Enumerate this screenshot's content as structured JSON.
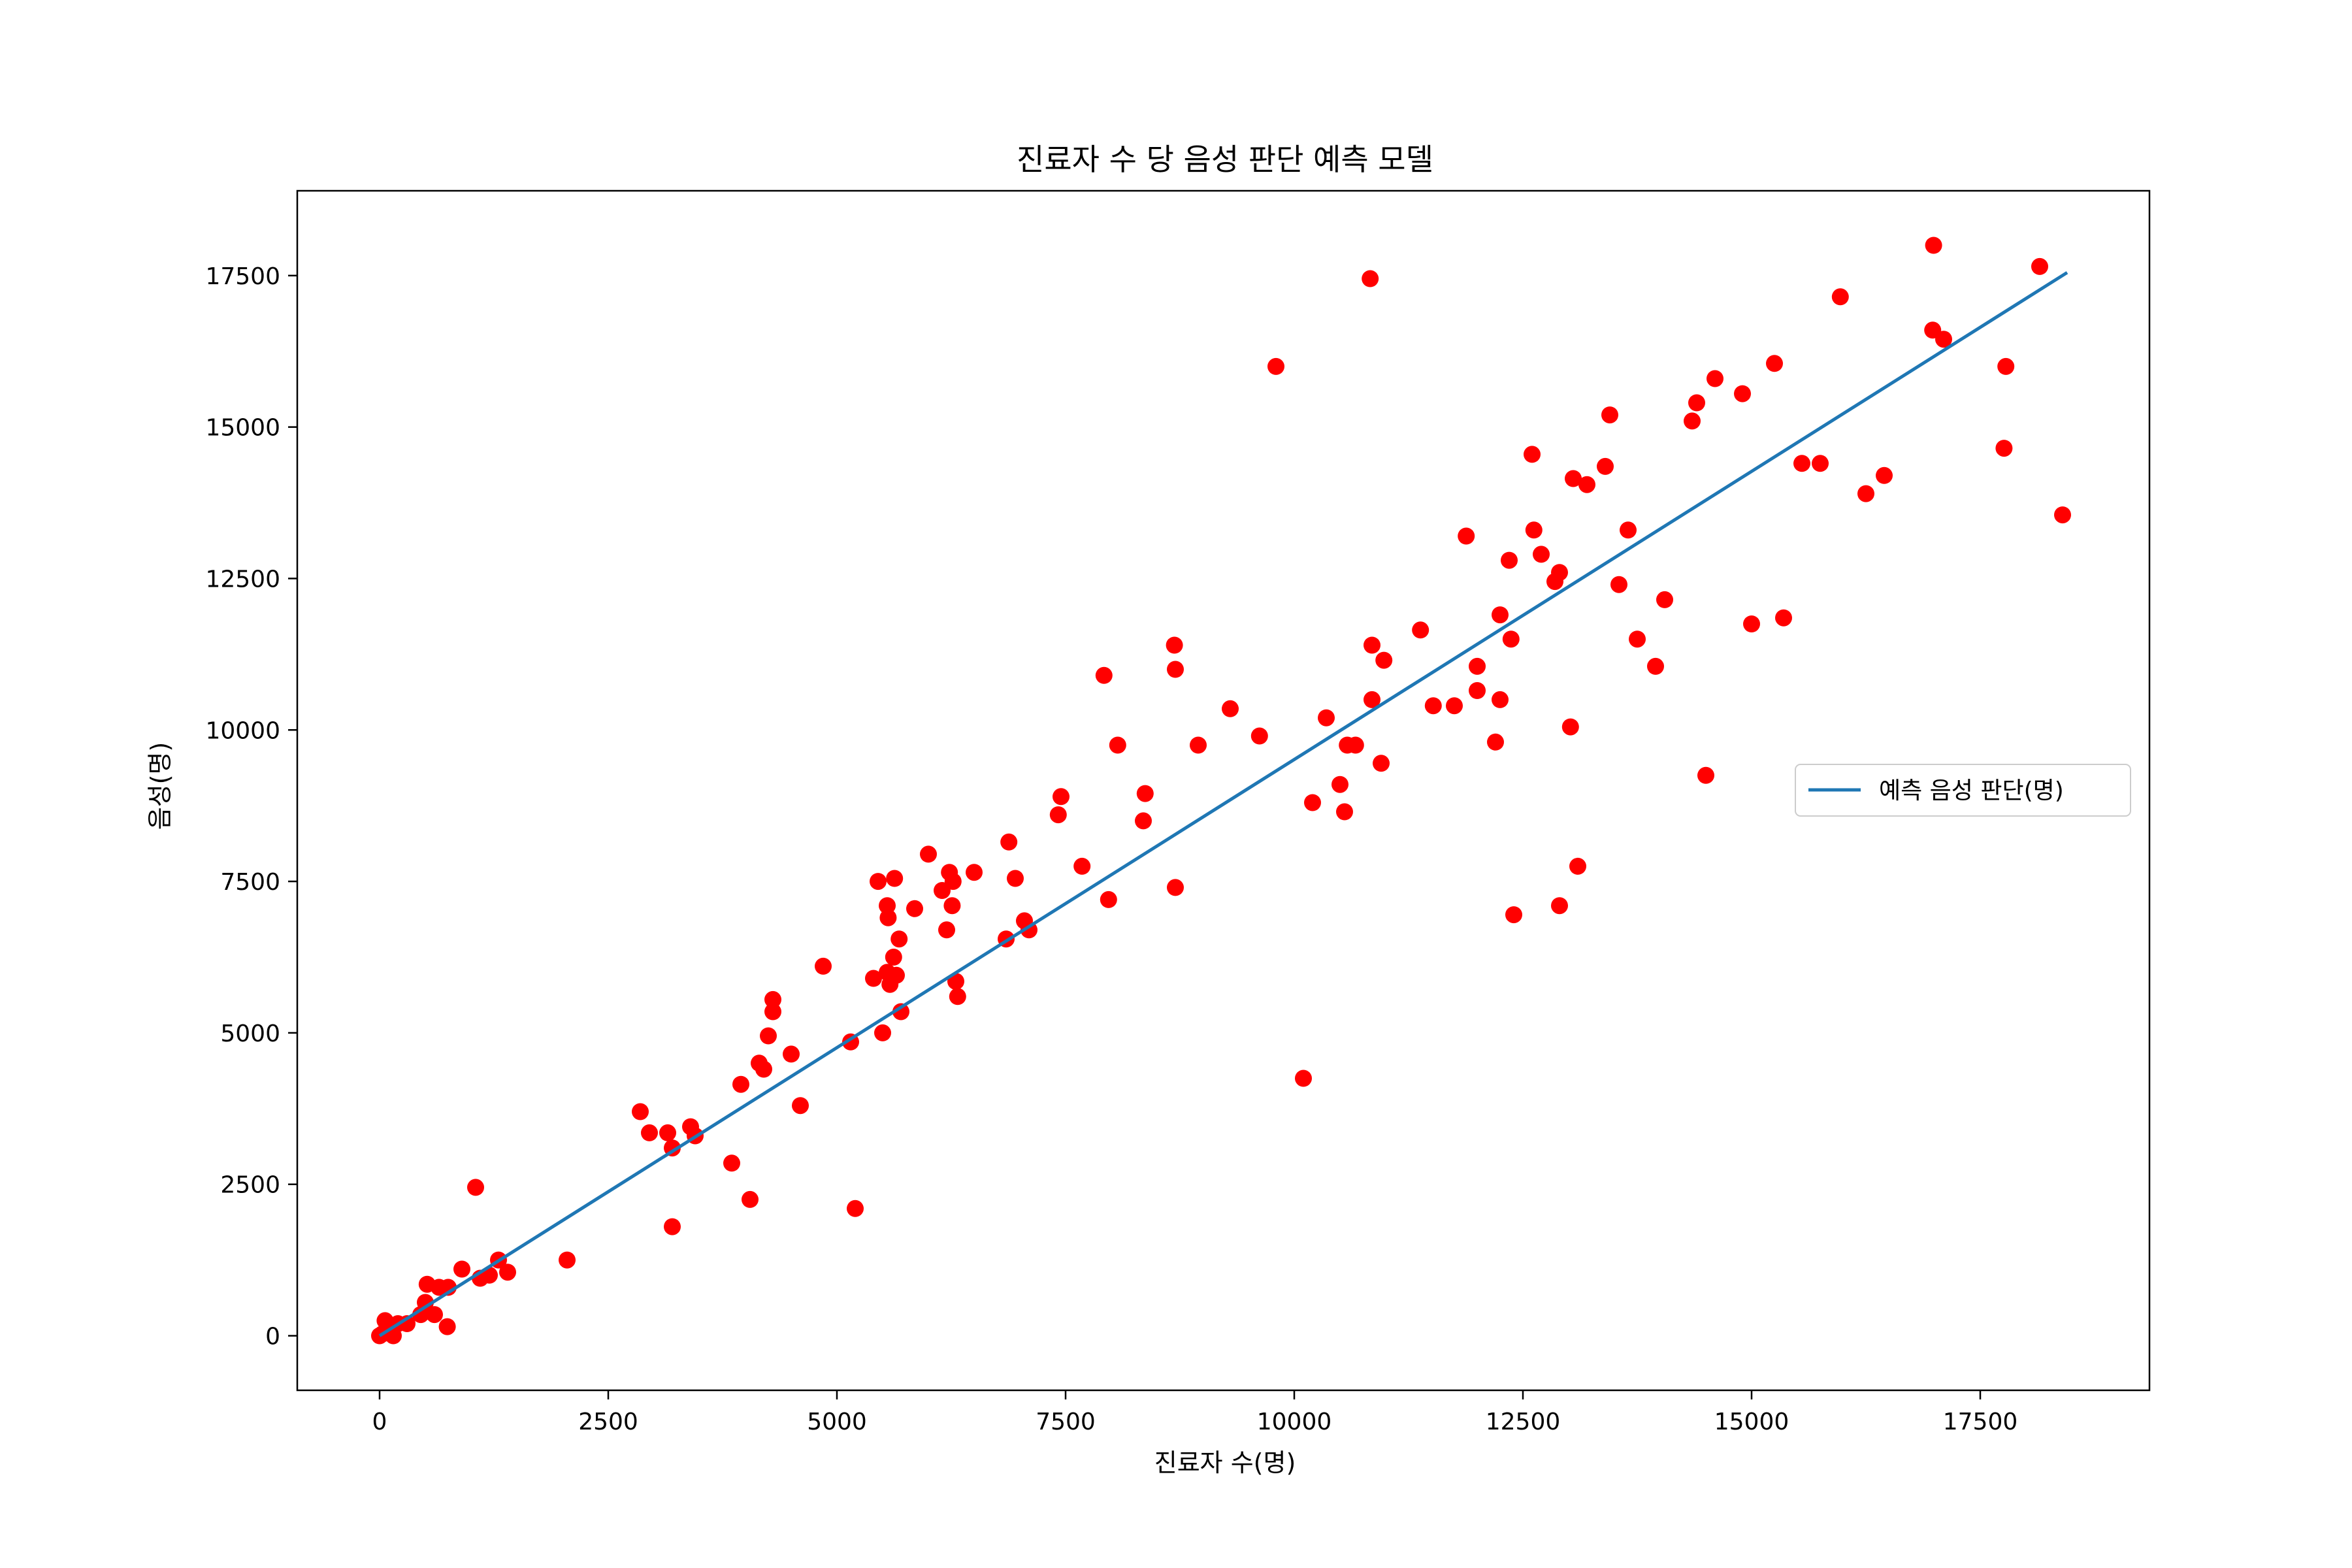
{
  "chart_data": {
    "type": "scatter",
    "title": "진료자 수 당 음성 판단 예측 모델",
    "xlabel": "진료자 수(명)",
    "ylabel": "음성(명)",
    "xlim": [
      -900,
      19350
    ],
    "ylim": [
      -900,
      18900
    ],
    "xticks": [
      0,
      2500,
      5000,
      7500,
      10000,
      12500,
      15000,
      17500
    ],
    "yticks": [
      0,
      2500,
      5000,
      7500,
      10000,
      12500,
      15000,
      17500
    ],
    "grid": false,
    "legend": {
      "placement": "center-right",
      "entries": [
        "예측 음성 판단(명)"
      ]
    },
    "colors": {
      "points": "#ff0000",
      "line": "#1f77b4"
    },
    "series": [
      {
        "type": "scatter",
        "color": "#ff0000",
        "points": [
          [
            0,
            0
          ],
          [
            30,
            30
          ],
          [
            60,
            250
          ],
          [
            100,
            50
          ],
          [
            150,
            0
          ],
          [
            200,
            200
          ],
          [
            300,
            200
          ],
          [
            450,
            350
          ],
          [
            500,
            550
          ],
          [
            520,
            850
          ],
          [
            600,
            350
          ],
          [
            650,
            800
          ],
          [
            740,
            150
          ],
          [
            750,
            800
          ],
          [
            900,
            1100
          ],
          [
            1050,
            2450
          ],
          [
            1100,
            950
          ],
          [
            1200,
            1000
          ],
          [
            1300,
            1250
          ],
          [
            1400,
            1050
          ],
          [
            2050,
            1250
          ],
          [
            2850,
            3700
          ],
          [
            2950,
            3350
          ],
          [
            3150,
            3350
          ],
          [
            3200,
            3100
          ],
          [
            3200,
            1800
          ],
          [
            3400,
            3450
          ],
          [
            3450,
            3300
          ],
          [
            3850,
            2850
          ],
          [
            3950,
            4150
          ],
          [
            4050,
            2250
          ],
          [
            4150,
            4500
          ],
          [
            4200,
            4400
          ],
          [
            4250,
            4950
          ],
          [
            4300,
            5550
          ],
          [
            4300,
            5350
          ],
          [
            4500,
            4650
          ],
          [
            4600,
            3800
          ],
          [
            4850,
            6100
          ],
          [
            5150,
            4850
          ],
          [
            5200,
            2100
          ],
          [
            5400,
            5900
          ],
          [
            5450,
            7500
          ],
          [
            5500,
            5000
          ],
          [
            5550,
            6000
          ],
          [
            5550,
            7100
          ],
          [
            5560,
            6900
          ],
          [
            5580,
            5800
          ],
          [
            5620,
            6250
          ],
          [
            5630,
            7550
          ],
          [
            5650,
            5950
          ],
          [
            5680,
            6550
          ],
          [
            5700,
            5350
          ],
          [
            5850,
            7050
          ],
          [
            6000,
            7950
          ],
          [
            6150,
            7350
          ],
          [
            6200,
            6700
          ],
          [
            6230,
            7650
          ],
          [
            6260,
            7100
          ],
          [
            6270,
            7500
          ],
          [
            6300,
            5850
          ],
          [
            6320,
            5600
          ],
          [
            6500,
            7650
          ],
          [
            6850,
            6550
          ],
          [
            6880,
            8150
          ],
          [
            6950,
            7550
          ],
          [
            7050,
            6850
          ],
          [
            7100,
            6700
          ],
          [
            7420,
            8600
          ],
          [
            7450,
            8900
          ],
          [
            7680,
            7750
          ],
          [
            7920,
            10900
          ],
          [
            7970,
            7200
          ],
          [
            8070,
            9750
          ],
          [
            8350,
            8500
          ],
          [
            8370,
            8950
          ],
          [
            8690,
            11400
          ],
          [
            8700,
            11000
          ],
          [
            8700,
            7400
          ],
          [
            8950,
            9750
          ],
          [
            9300,
            10350
          ],
          [
            9620,
            9900
          ],
          [
            9800,
            16000
          ],
          [
            10100,
            4250
          ],
          [
            10200,
            8800
          ],
          [
            10350,
            10200
          ],
          [
            10500,
            9100
          ],
          [
            10550,
            8650
          ],
          [
            10580,
            9750
          ],
          [
            10670,
            9750
          ],
          [
            10830,
            17450
          ],
          [
            10850,
            11400
          ],
          [
            10850,
            10500
          ],
          [
            10950,
            9450
          ],
          [
            10980,
            11150
          ],
          [
            11380,
            11650
          ],
          [
            11520,
            10400
          ],
          [
            11750,
            10400
          ],
          [
            11880,
            13200
          ],
          [
            12000,
            11050
          ],
          [
            12000,
            10650
          ],
          [
            12200,
            9800
          ],
          [
            12250,
            11900
          ],
          [
            12250,
            10500
          ],
          [
            12350,
            12800
          ],
          [
            12370,
            11500
          ],
          [
            12400,
            6950
          ],
          [
            12600,
            14550
          ],
          [
            12620,
            13300
          ],
          [
            12700,
            12900
          ],
          [
            12850,
            12450
          ],
          [
            12900,
            12600
          ],
          [
            12900,
            7100
          ],
          [
            13020,
            10050
          ],
          [
            13050,
            14150
          ],
          [
            13100,
            7750
          ],
          [
            13200,
            14050
          ],
          [
            13400,
            14350
          ],
          [
            13450,
            15200
          ],
          [
            13550,
            12400
          ],
          [
            13650,
            13300
          ],
          [
            13750,
            11500
          ],
          [
            13950,
            11050
          ],
          [
            14050,
            12150
          ],
          [
            14350,
            15100
          ],
          [
            14400,
            15400
          ],
          [
            14500,
            9250
          ],
          [
            14600,
            15800
          ],
          [
            14900,
            15550
          ],
          [
            15000,
            11750
          ],
          [
            15250,
            16050
          ],
          [
            15350,
            11850
          ],
          [
            15550,
            14400
          ],
          [
            15750,
            14400
          ],
          [
            15970,
            17150
          ],
          [
            16250,
            13900
          ],
          [
            16450,
            14200
          ],
          [
            16980,
            16600
          ],
          [
            16990,
            18000
          ],
          [
            17100,
            16450
          ],
          [
            17760,
            14650
          ],
          [
            17780,
            16000
          ],
          [
            18150,
            17650
          ],
          [
            18400,
            13550
          ]
        ]
      },
      {
        "type": "line",
        "name": "예측 음성 판단(명)",
        "color": "#1f77b4",
        "x": [
          0,
          18450
        ],
        "y": [
          0,
          17550
        ]
      }
    ]
  }
}
